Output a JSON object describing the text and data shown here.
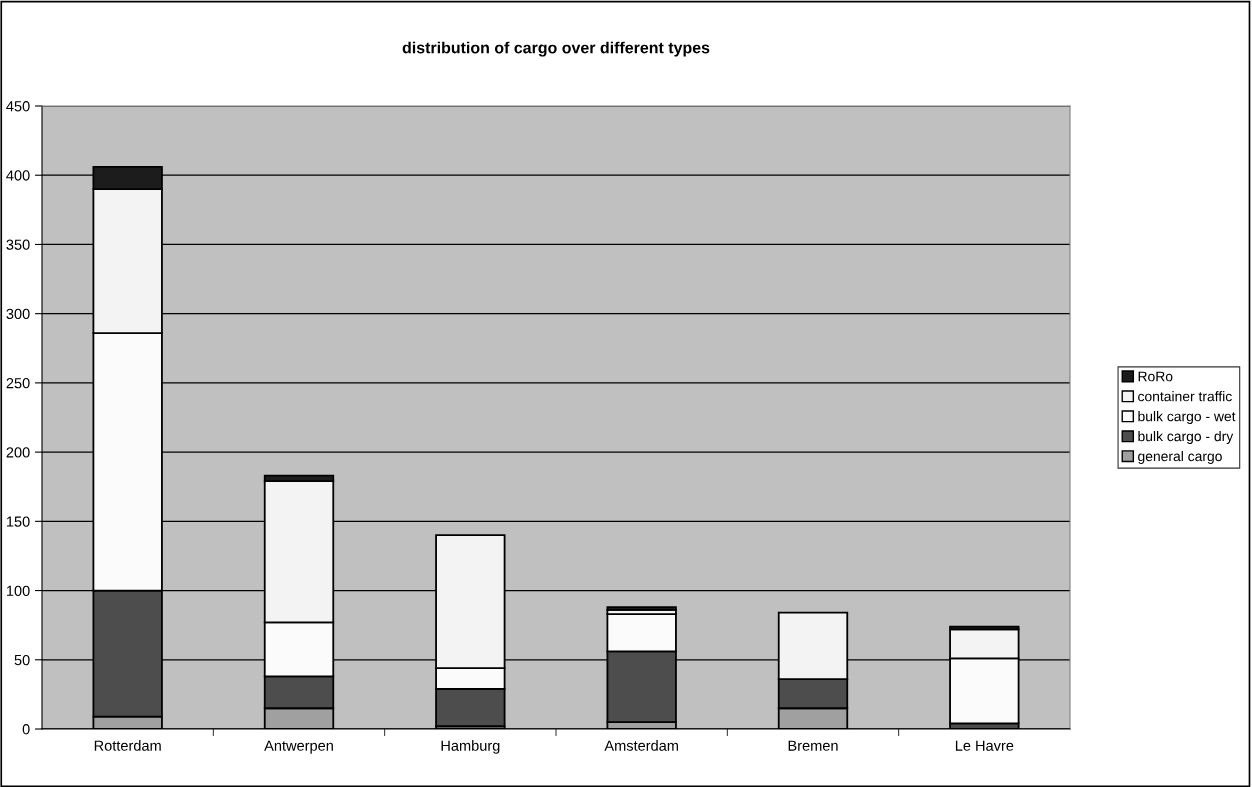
{
  "chart_data": {
    "type": "bar",
    "stacked": true,
    "title": "distribution of cargo over different types",
    "categories": [
      "Rotterdam",
      "Antwerpen",
      "Hamburg",
      "Amsterdam",
      "Bremen",
      "Le Havre"
    ],
    "series": [
      {
        "name": "general cargo",
        "color": "#a0a0a0",
        "values": [
          9,
          15,
          2,
          5,
          15,
          0
        ]
      },
      {
        "name": "bulk cargo - dry",
        "color": "#4d4d4d",
        "values": [
          91,
          23,
          27,
          51,
          21,
          4
        ]
      },
      {
        "name": "bulk cargo - wet",
        "color": "#fbfbfb",
        "values": [
          186,
          39,
          15,
          27,
          0,
          47
        ]
      },
      {
        "name": "container traffic",
        "color": "#f3f3f3",
        "values": [
          104,
          102,
          96,
          3,
          48,
          21
        ]
      },
      {
        "name": "RoRo",
        "color": "#1c1c1c",
        "values": [
          16,
          4,
          0,
          2,
          0,
          2
        ]
      }
    ],
    "ylim": [
      0,
      450
    ],
    "yticks": [
      0,
      50,
      100,
      150,
      200,
      250,
      300,
      350,
      400,
      450
    ],
    "grid": "y",
    "legend": "right"
  }
}
